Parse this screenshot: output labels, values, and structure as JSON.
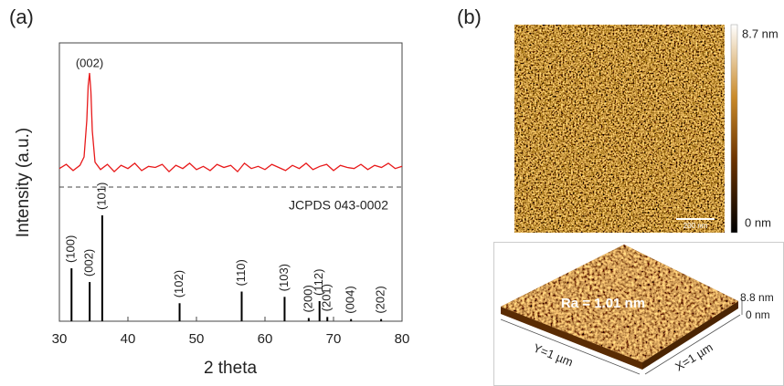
{
  "panel_labels": [
    "(a)",
    "(b)"
  ],
  "chart_data": {
    "type": "line",
    "xlabel": "2 theta",
    "ylabel": "Intensity (a.u.)",
    "xlim": [
      30,
      80
    ],
    "xticks": [
      30,
      40,
      50,
      60,
      70,
      80
    ],
    "peak_label": "(002)",
    "measured": {
      "color": "#e8191a",
      "x": [
        30,
        31,
        32,
        33,
        33.6,
        34,
        34.2,
        34.4,
        34.6,
        34.8,
        35.2,
        36,
        37,
        38,
        39,
        40,
        41,
        42,
        43,
        44,
        45,
        46,
        47,
        48,
        49,
        50,
        51,
        52,
        53,
        54,
        55,
        56,
        57,
        58,
        59,
        60,
        61,
        62,
        63,
        64,
        65,
        66,
        67,
        68,
        69,
        70,
        71,
        72,
        73,
        74,
        75,
        76,
        77,
        78,
        79,
        80
      ],
      "values": [
        9,
        13,
        7,
        12,
        20,
        55,
        88,
        100,
        82,
        45,
        15,
        8,
        13,
        6,
        12,
        9,
        14,
        7,
        11,
        10,
        13,
        6,
        12,
        9,
        14,
        8,
        11,
        7,
        13,
        10,
        12,
        6,
        14,
        9,
        11,
        8,
        13,
        10,
        7,
        12,
        9,
        14,
        8,
        11,
        13,
        7,
        12,
        10,
        9,
        13,
        8,
        12,
        10,
        14,
        9,
        11
      ]
    },
    "reference": {
      "name": "JCPDS 043-0002",
      "color": "#000000",
      "x": [
        31.77,
        34.42,
        36.25,
        47.54,
        56.6,
        62.86,
        66.38,
        67.96,
        69.1,
        72.56,
        76.95
      ],
      "values": [
        50,
        37,
        100,
        17,
        28,
        23,
        3,
        19,
        4,
        2,
        2
      ],
      "labels": [
        "(100)",
        "(002)",
        "(101)",
        "(102)",
        "(110)",
        "(103)",
        "(200)",
        "(112)",
        "(201)",
        "(004)",
        "(202)"
      ]
    }
  },
  "afm": {
    "colorbar_max": "8.7 nm",
    "colorbar_min": "0 nm",
    "scale_bar": "200 nm",
    "roughness": "Ra = 1.01 nm",
    "z_max": "8.8 nm",
    "z_min": "0 nm",
    "y_axis": "Y=1 µm",
    "x_axis": "X=1 µm"
  }
}
